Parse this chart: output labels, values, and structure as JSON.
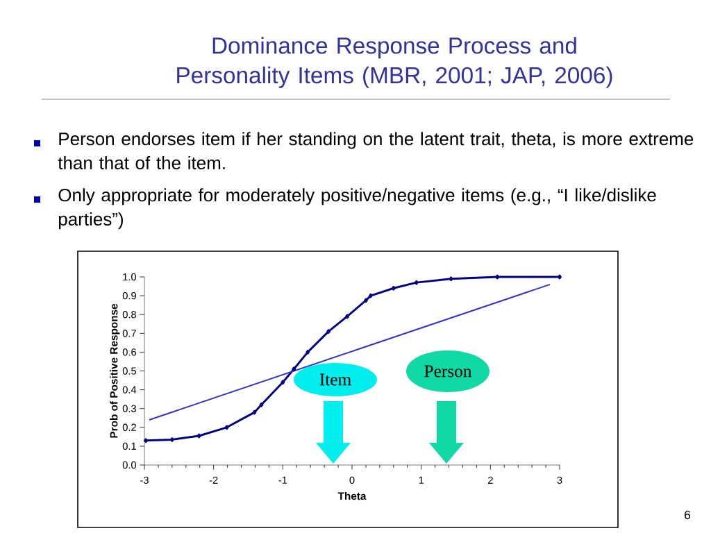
{
  "chart_data": {
    "type": "line",
    "title": "Dominance Response Process and Personality Items (MBR, 2001; JAP, 2006)",
    "xlabel": "Theta",
    "ylabel": "Prob of Positive Response",
    "series": [
      {
        "color": "#000080",
        "marker": "diamond",
        "x": [
          -2.98,
          -2.6,
          -2.21,
          -1.81,
          -1.41,
          -1.31,
          -1.0,
          -0.84,
          -0.64,
          -0.34,
          -0.07,
          0.2,
          0.27,
          0.6,
          0.93,
          1.43,
          2.1,
          3.0
        ],
        "values": [
          0.13,
          0.135,
          0.155,
          0.2,
          0.28,
          0.32,
          0.44,
          0.51,
          0.6,
          0.71,
          0.79,
          0.875,
          0.9,
          0.94,
          0.97,
          0.99,
          1.0,
          1.0
        ]
      },
      {
        "color": "#3333cc",
        "marker": "none",
        "x": [
          -2.93,
          2.86
        ],
        "values": [
          0.24,
          0.96
        ]
      }
    ],
    "xlim": [
      -3,
      3
    ],
    "ylim": [
      0,
      1
    ],
    "xticks": [
      -3,
      -2,
      -1,
      0,
      1,
      2,
      3
    ],
    "yticks": [
      {
        "value": 0,
        "label": "0.0"
      },
      {
        "value": 0.1,
        "label": "0.1"
      },
      {
        "value": 0.2,
        "label": "0.2"
      },
      {
        "value": 0.3,
        "label": "0.3"
      },
      {
        "value": 0.4,
        "label": "0.4"
      },
      {
        "value": 0.5,
        "label": "0.5"
      },
      {
        "value": 0.6,
        "label": "0.6"
      },
      {
        "value": 0.7,
        "label": "0.7"
      },
      {
        "value": 0.8,
        "label": "0.8"
      },
      {
        "value": 0.9,
        "label": "0.9"
      },
      {
        "value": 1,
        "label": "1.0"
      }
    ],
    "grid": false,
    "annotations": [
      "Person endorses item if her standing on the latent trait, theta, is more extreme than that of the item.",
      "Only appropriate for moderately positive/negative items (e.g., “I like/dislike parties”)",
      "6",
      "Item",
      "Person"
    ]
  }
}
